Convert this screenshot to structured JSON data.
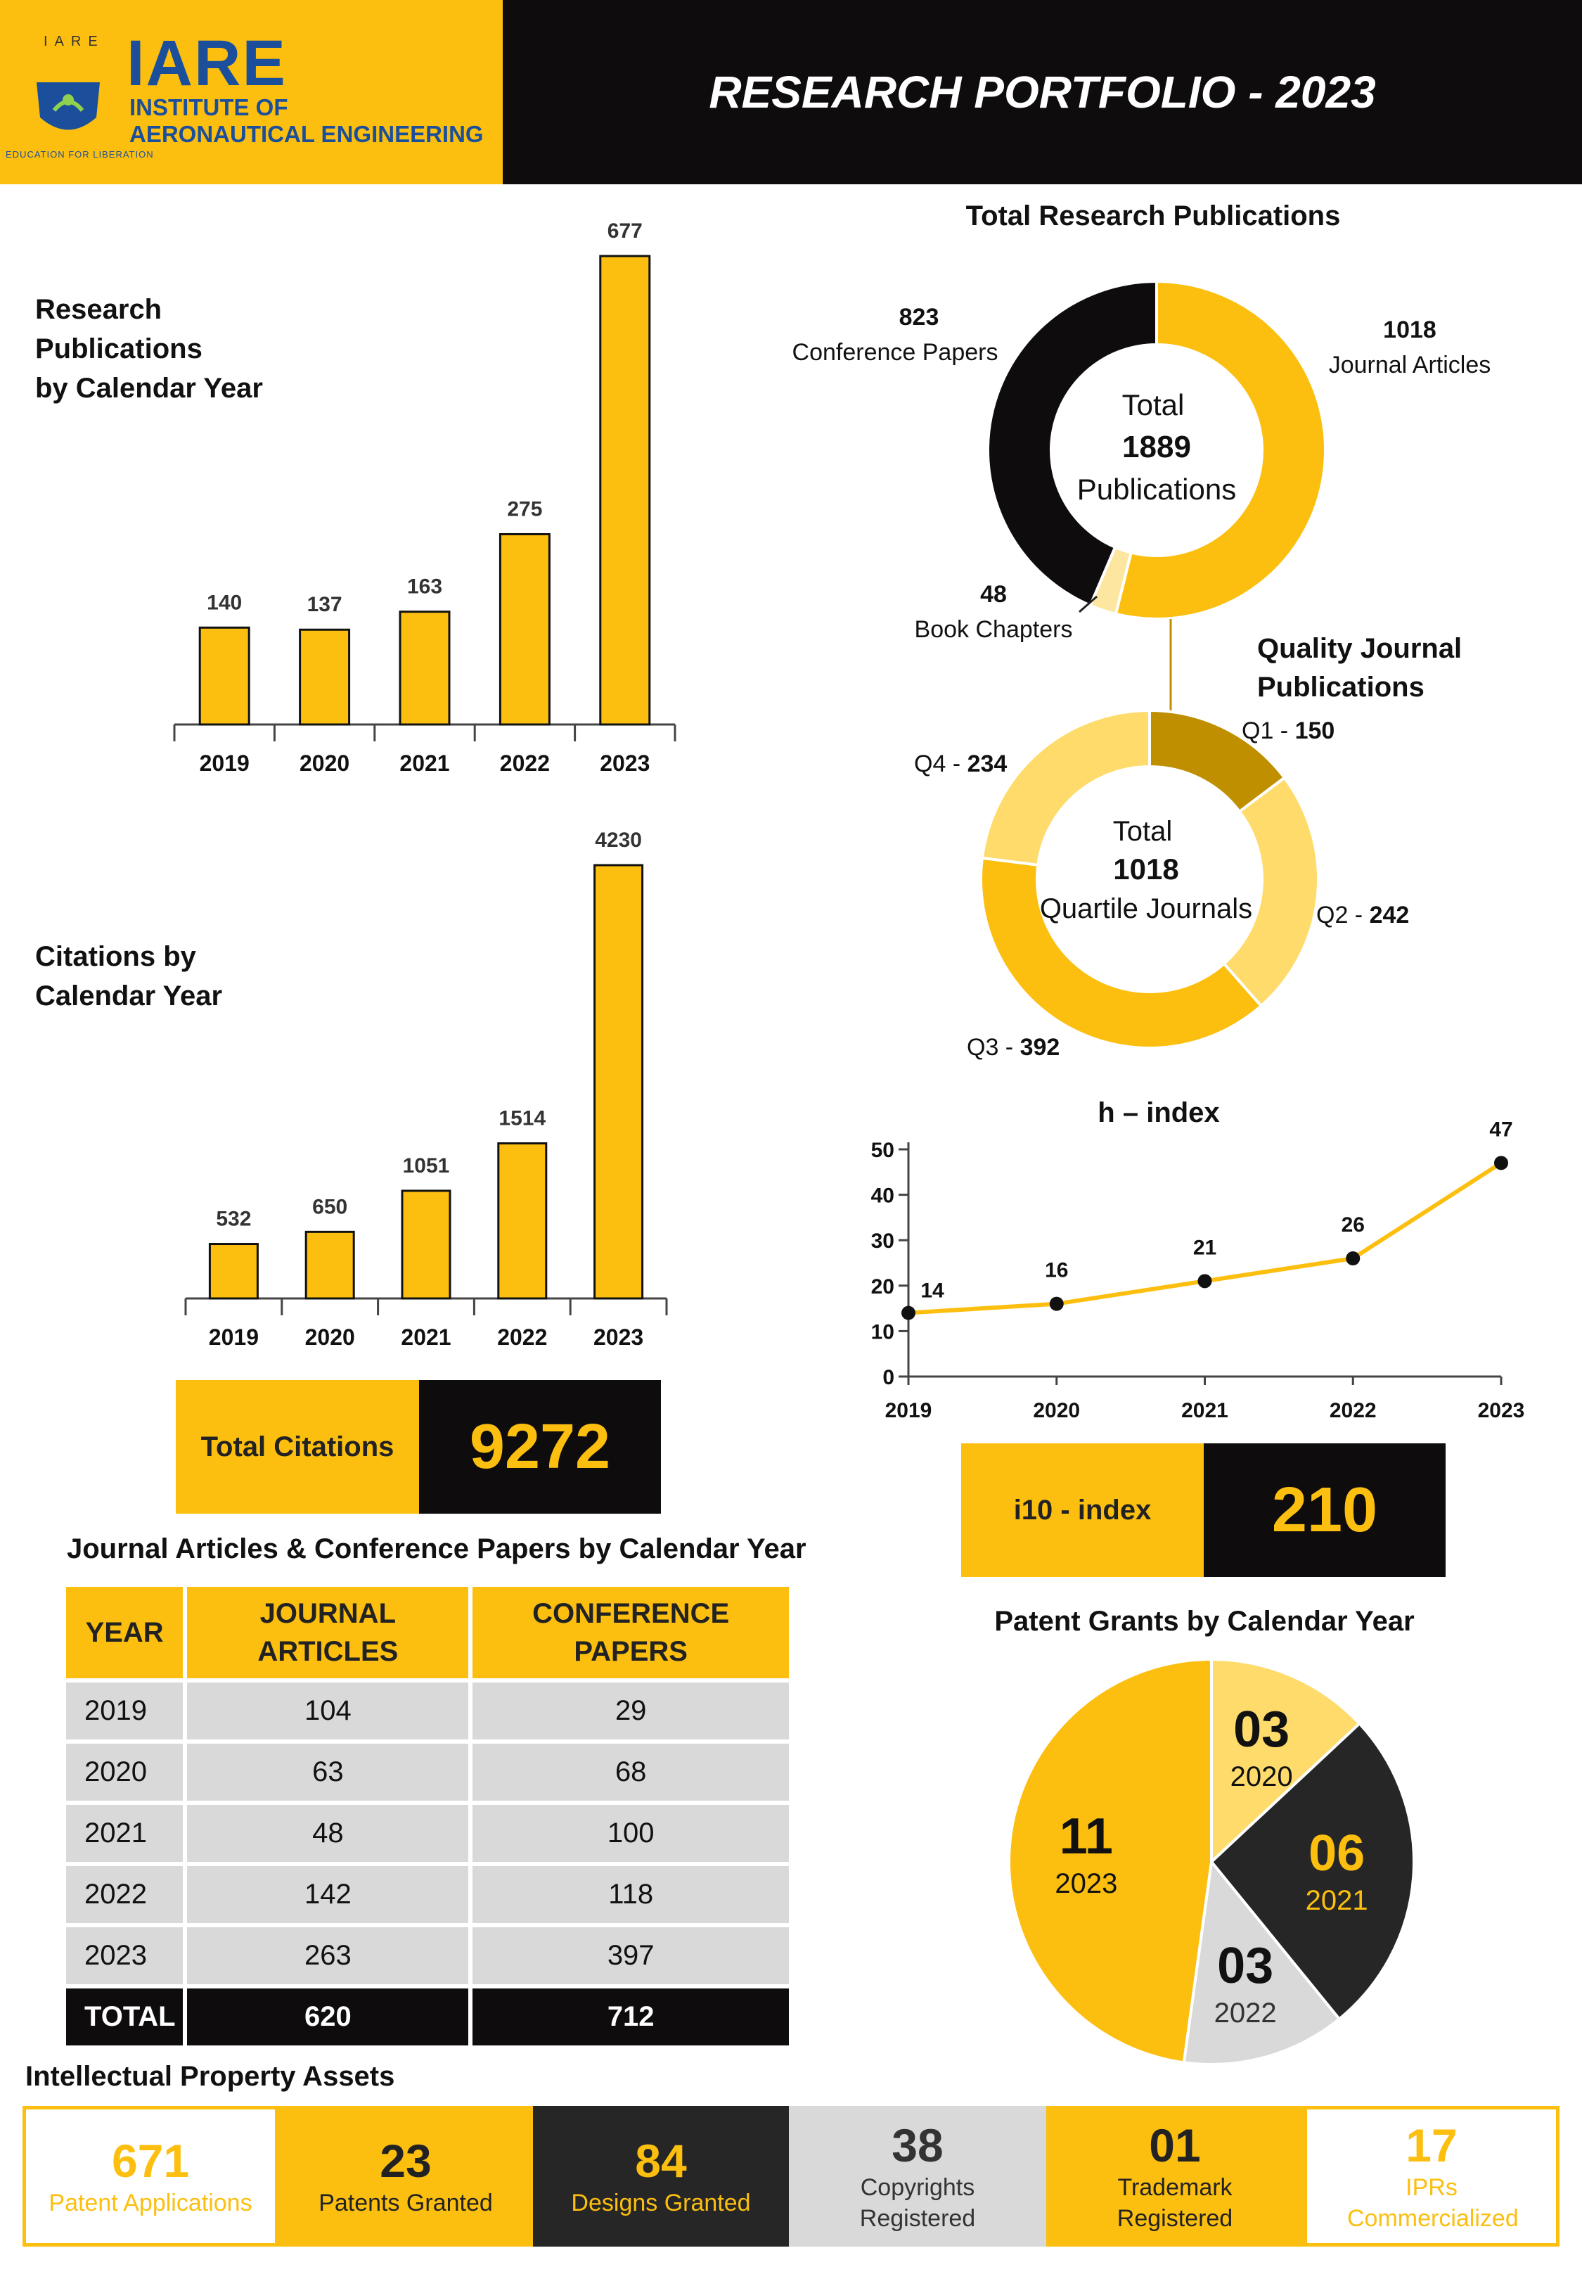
{
  "header": {
    "title": "RESEARCH PORTFOLIO - 2023",
    "logo_small": "IARE",
    "logo_big": "IARE",
    "logo_line1": "INSTITUTE OF",
    "logo_line2": "AERONAUTICAL ENGINEERING",
    "logo_motto": "EDUCATION FOR LIBERATION"
  },
  "pub_title": [
    "Research",
    "Publications",
    "by Calendar Year"
  ],
  "cit_title": [
    "Citations by",
    "Calendar Year"
  ],
  "total_citations": {
    "label": "Total Citations",
    "value": "9272"
  },
  "i10": {
    "label": "i10 - index",
    "value": "210"
  },
  "table": {
    "title": "Journal Articles & Conference Papers by Calendar Year",
    "headers": [
      "YEAR",
      "JOURNAL ARTICLES",
      "CONFERENCE PAPERS"
    ],
    "rows": [
      [
        "2019",
        "104",
        "29"
      ],
      [
        "2020",
        "63",
        "68"
      ],
      [
        "2021",
        "48",
        "100"
      ],
      [
        "2022",
        "142",
        "118"
      ],
      [
        "2023",
        "263",
        "397"
      ]
    ],
    "total": [
      "TOTAL",
      "620",
      "712"
    ]
  },
  "ip": {
    "title": "Intellectual Property Assets",
    "items": [
      {
        "num": "671",
        "label": "Patent Applications"
      },
      {
        "num": "23",
        "label": "Patents Granted"
      },
      {
        "num": "84",
        "label": "Designs Granted"
      },
      {
        "num": "38",
        "label": "Copyrights Registered"
      },
      {
        "num": "01",
        "label": "Trademark Registered"
      },
      {
        "num": "17",
        "label": "IPRs Commercialized"
      }
    ]
  },
  "colors": {
    "yellow": "#fcbf10",
    "light_yellow": "#fedb6b",
    "dark_gold": "#bf8f00",
    "black": "#0e0c0d",
    "dark_gray": "#262626",
    "gray": "#d9d9d9",
    "pale": "#fde7a0"
  },
  "chart_data": [
    {
      "type": "bar",
      "title": "Research Publications by Calendar Year",
      "categories": [
        "2019",
        "2020",
        "2021",
        "2022",
        "2023"
      ],
      "values": [
        140,
        137,
        163,
        275,
        677
      ]
    },
    {
      "type": "bar",
      "title": "Citations by Calendar Year",
      "categories": [
        "2019",
        "2020",
        "2021",
        "2022",
        "2023"
      ],
      "values": [
        532,
        650,
        1051,
        1514,
        4230
      ]
    },
    {
      "type": "pie",
      "title": "Total Research Publications",
      "center": [
        "Total",
        "1889",
        "Publications"
      ],
      "slices": [
        {
          "label": "Journal Articles",
          "value": 1018
        },
        {
          "label": "Book Chapters",
          "value": 48
        },
        {
          "label": "Conference Papers",
          "value": 823
        }
      ]
    },
    {
      "type": "pie",
      "title": "Quality Journal Publications",
      "center": [
        "Total",
        "1018",
        "Quartile Journals"
      ],
      "slices": [
        {
          "label": "Q1",
          "value": 150
        },
        {
          "label": "Q2",
          "value": 242
        },
        {
          "label": "Q3",
          "value": 392
        },
        {
          "label": "Q4",
          "value": 234
        }
      ]
    },
    {
      "type": "line",
      "title": "h – index",
      "x": [
        "2019",
        "2020",
        "2021",
        "2022",
        "2023"
      ],
      "values": [
        14,
        16,
        21,
        26,
        47
      ],
      "ylim": [
        0,
        50
      ],
      "yticks": [
        "0",
        "10",
        "20",
        "30",
        "40",
        "50"
      ]
    },
    {
      "type": "pie",
      "title": "Patent Grants by Calendar Year",
      "slices": [
        {
          "label": "2020",
          "display": "03",
          "value": 3
        },
        {
          "label": "2021",
          "display": "06",
          "value": 6
        },
        {
          "label": "2022",
          "display": "03",
          "value": 3
        },
        {
          "label": "2023",
          "display": "11",
          "value": 11
        }
      ]
    }
  ]
}
